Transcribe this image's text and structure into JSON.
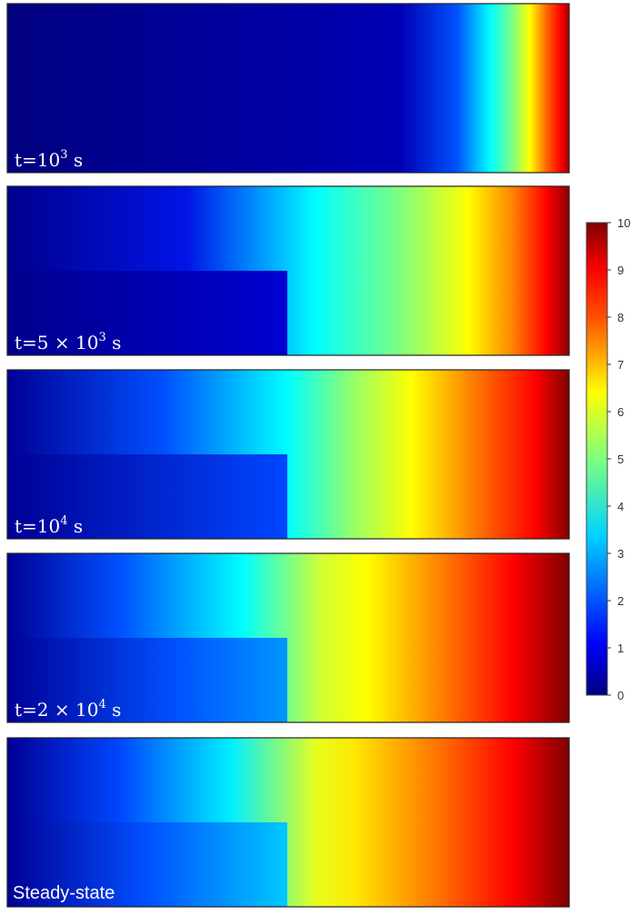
{
  "chart_data": {
    "type": "heatmap",
    "colormap": "jet",
    "colormap_stops": [
      "#00007f",
      "#0000ff",
      "#007fff",
      "#00ffff",
      "#7fff7f",
      "#ffff00",
      "#ff7f00",
      "#ff0000",
      "#7f0000"
    ],
    "colorbar": {
      "ticks": [
        0,
        1,
        2,
        3,
        4,
        5,
        6,
        7,
        8,
        9,
        10
      ],
      "range": [
        0,
        10
      ]
    },
    "panels": [
      {
        "label": "t=10",
        "exponent": "3",
        "unit": "s",
        "boundary_value": 10
      },
      {
        "label": "t=5 × 10",
        "exponent": "3",
        "unit": "s",
        "boundary_value": 10
      },
      {
        "label": "t=10",
        "exponent": "4",
        "unit": "s",
        "boundary_value": 10
      },
      {
        "label": "t=2 × 10",
        "exponent": "4",
        "unit": "s",
        "boundary_value": 10
      },
      {
        "label": "Steady-state",
        "exponent": "",
        "unit": "",
        "boundary_value": 10
      }
    ]
  }
}
